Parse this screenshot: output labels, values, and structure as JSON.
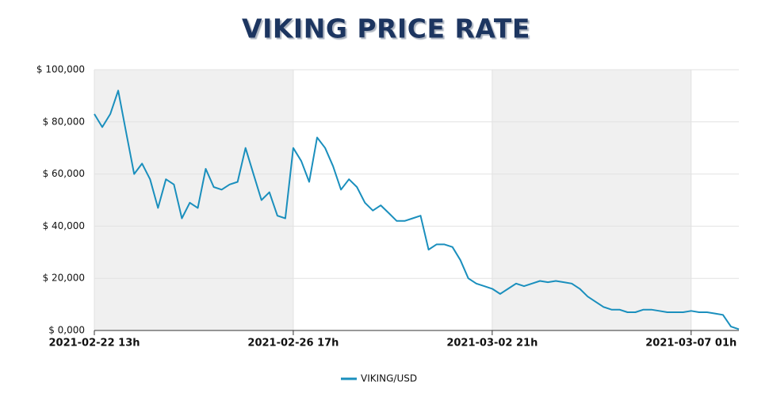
{
  "chart_data": {
    "type": "line",
    "title": "VIKING PRICE RATE",
    "x": [
      "2021-02-22 13h",
      "2021-02-22 17h",
      "2021-02-22 21h",
      "2021-02-23 01h",
      "2021-02-23 05h",
      "2021-02-23 09h",
      "2021-02-23 13h",
      "2021-02-23 17h",
      "2021-02-23 21h",
      "2021-02-24 01h",
      "2021-02-24 05h",
      "2021-02-24 09h",
      "2021-02-24 13h",
      "2021-02-24 17h",
      "2021-02-24 21h",
      "2021-02-25 01h",
      "2021-02-25 05h",
      "2021-02-25 09h",
      "2021-02-25 13h",
      "2021-02-25 17h",
      "2021-02-25 21h",
      "2021-02-26 01h",
      "2021-02-26 05h",
      "2021-02-26 09h",
      "2021-02-26 13h",
      "2021-02-26 17h",
      "2021-02-26 21h",
      "2021-02-27 01h",
      "2021-02-27 05h",
      "2021-02-27 09h",
      "2021-02-27 13h",
      "2021-02-27 17h",
      "2021-02-27 21h",
      "2021-02-28 01h",
      "2021-02-28 05h",
      "2021-02-28 09h",
      "2021-02-28 13h",
      "2021-02-28 17h",
      "2021-02-28 21h",
      "2021-03-01 01h",
      "2021-03-01 05h",
      "2021-03-01 09h",
      "2021-03-01 13h",
      "2021-03-01 17h",
      "2021-03-01 21h",
      "2021-03-02 01h",
      "2021-03-02 05h",
      "2021-03-02 09h",
      "2021-03-02 13h",
      "2021-03-02 17h",
      "2021-03-02 21h",
      "2021-03-03 01h",
      "2021-03-03 05h",
      "2021-03-03 09h",
      "2021-03-03 13h",
      "2021-03-03 17h",
      "2021-03-03 21h",
      "2021-03-04 01h",
      "2021-03-04 05h",
      "2021-03-04 09h",
      "2021-03-04 13h",
      "2021-03-04 17h",
      "2021-03-04 21h",
      "2021-03-05 01h",
      "2021-03-05 05h",
      "2021-03-05 09h",
      "2021-03-05 13h",
      "2021-03-05 17h",
      "2021-03-05 21h",
      "2021-03-06 01h",
      "2021-03-06 05h",
      "2021-03-06 09h",
      "2021-03-06 13h",
      "2021-03-06 17h",
      "2021-03-06 21h",
      "2021-03-07 01h",
      "2021-03-07 05h",
      "2021-03-07 09h",
      "2021-03-07 13h",
      "2021-03-07 17h",
      "2021-03-07 21h",
      "2021-03-08 01h"
    ],
    "series": [
      {
        "name": "VIKING/USD",
        "color": "#1a8fbd",
        "values": [
          83000,
          78000,
          83000,
          92000,
          76000,
          60000,
          64000,
          58000,
          47000,
          58000,
          56000,
          43000,
          49000,
          47000,
          62000,
          55000,
          54000,
          56000,
          57000,
          70000,
          60000,
          50000,
          53000,
          44000,
          43000,
          70000,
          65000,
          57000,
          74000,
          70000,
          63000,
          54000,
          58000,
          55000,
          49000,
          46000,
          48000,
          45000,
          42000,
          42000,
          43000,
          44000,
          31000,
          33000,
          33000,
          32000,
          27000,
          20000,
          18000,
          17000,
          16000,
          14000,
          16000,
          18000,
          17000,
          18000,
          19000,
          18500,
          19000,
          18500,
          18000,
          16000,
          13000,
          11000,
          9000,
          8000,
          8000,
          7000,
          7000,
          8000,
          8000,
          7500,
          7000,
          7000,
          7000,
          7500,
          7000,
          7000,
          6500,
          6000,
          1500,
          500
        ]
      }
    ],
    "xlim": [
      "2021-02-22 13h",
      "2021-03-08 01h"
    ],
    "xticks": [
      "2021-02-22 13h",
      "2021-02-26 17h",
      "2021-03-02 21h",
      "2021-03-07 01h"
    ],
    "ylim": [
      0,
      100000
    ],
    "yticks": [
      {
        "value": 0,
        "label": "$ 0,000"
      },
      {
        "value": 20000,
        "label": "$ 20,000"
      },
      {
        "value": 40000,
        "label": "$ 40,000"
      },
      {
        "value": 60000,
        "label": "$ 60,000"
      },
      {
        "value": 80000,
        "label": "$ 80,000"
      },
      {
        "value": 100000,
        "label": "$ 100,000"
      }
    ],
    "grid": true
  }
}
